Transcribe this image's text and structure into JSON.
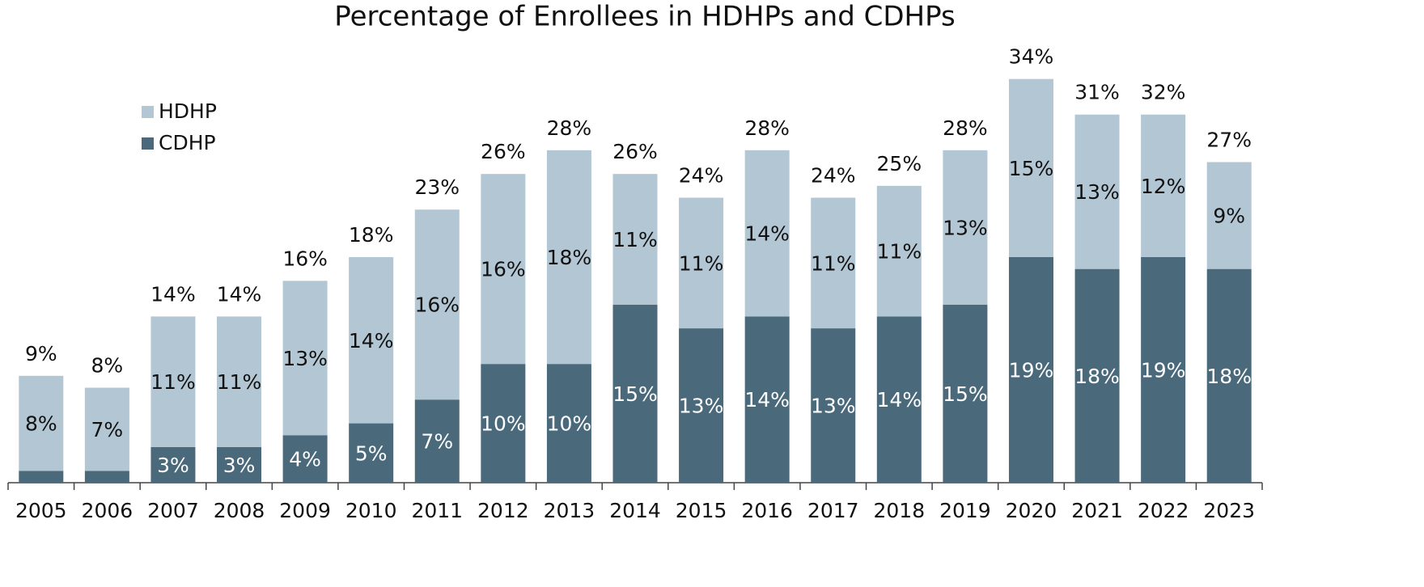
{
  "chart_data": {
    "type": "stacked_bar",
    "title": "Percentage of Enrollees in HDHPs and CDHPs",
    "categories": [
      "2005",
      "2006",
      "2007",
      "2008",
      "2009",
      "2010",
      "2011",
      "2012",
      "2013",
      "2014",
      "2015",
      "2016",
      "2017",
      "2018",
      "2019",
      "2020",
      "2021",
      "2022",
      "2023"
    ],
    "series": [
      {
        "name": "CDHP",
        "color": "#4a6a7c",
        "values": [
          1,
          1,
          3,
          3,
          4,
          5,
          7,
          10,
          10,
          15,
          13,
          14,
          13,
          14,
          15,
          19,
          18,
          19,
          18
        ],
        "value_labels": [
          null,
          null,
          "3%",
          "3%",
          "4%",
          "5%",
          "7%",
          "10%",
          "10%",
          "15%",
          "13%",
          "14%",
          "13%",
          "14%",
          "15%",
          "19%",
          "18%",
          "19%",
          "18%"
        ]
      },
      {
        "name": "HDHP",
        "color": "#b3c6d3",
        "values": [
          8,
          7,
          11,
          11,
          13,
          14,
          16,
          16,
          18,
          11,
          11,
          14,
          11,
          11,
          13,
          15,
          13,
          12,
          9
        ],
        "value_labels": [
          "8%",
          "7%",
          "11%",
          "11%",
          "13%",
          "14%",
          "16%",
          "16%",
          "18%",
          "11%",
          "11%",
          "14%",
          "11%",
          "11%",
          "13%",
          "15%",
          "13%",
          "12%",
          "9%"
        ]
      }
    ],
    "totals": [
      9,
      8,
      14,
      14,
      16,
      18,
      23,
      26,
      28,
      26,
      24,
      28,
      24,
      25,
      28,
      34,
      31,
      32,
      27
    ],
    "total_labels": [
      "9%",
      "8%",
      "14%",
      "14%",
      "16%",
      "18%",
      "23%",
      "26%",
      "28%",
      "26%",
      "24%",
      "28%",
      "24%",
      "25%",
      "28%",
      "34%",
      "31%",
      "32%",
      "27%"
    ],
    "ylim": [
      0,
      35
    ]
  }
}
